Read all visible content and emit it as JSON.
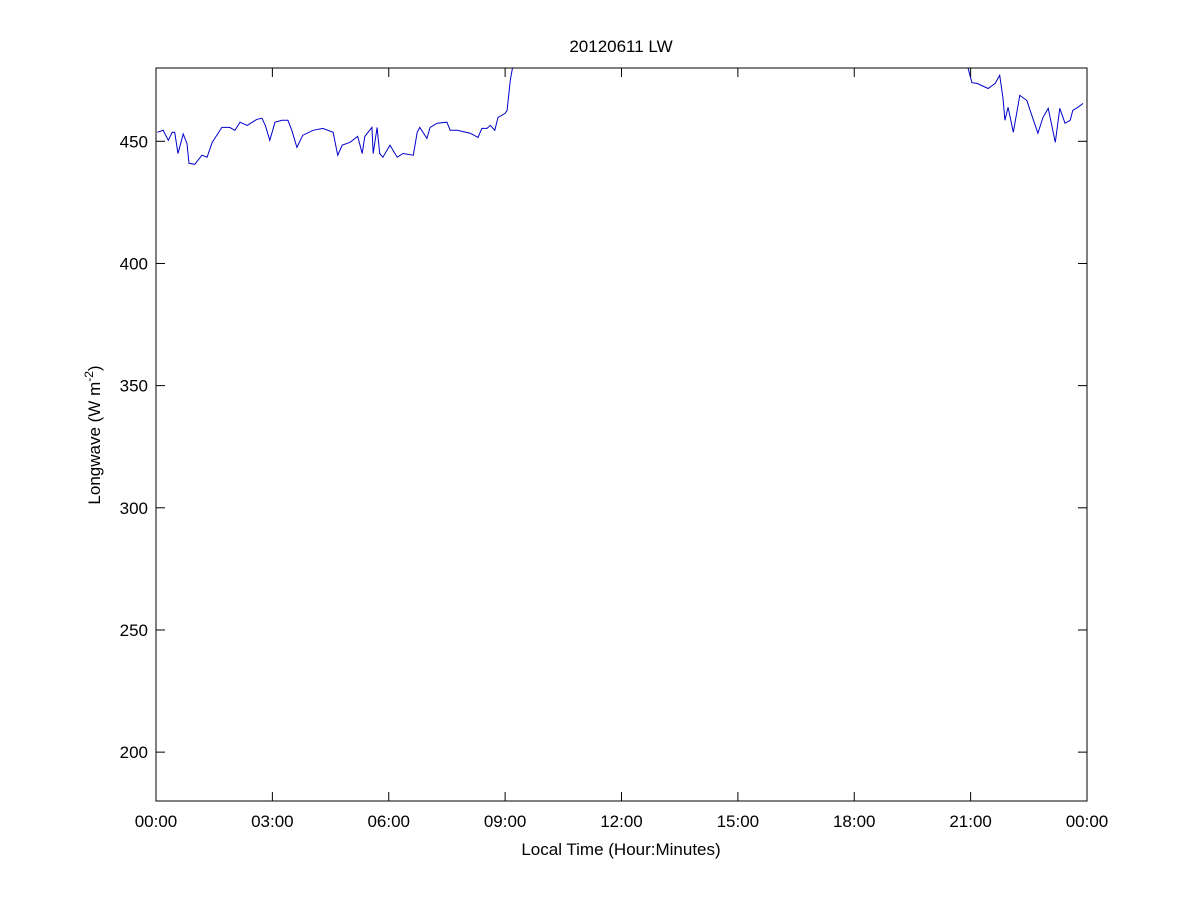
{
  "chart_data": {
    "type": "line",
    "title": "20120611 LW",
    "xlabel": "Local Time (Hour:Minutes)",
    "ylabel": "Longwave (W m",
    "ylabel_superscript": "-2",
    "ylabel_suffix": ")",
    "xlim": [
      "00:00",
      "24:00"
    ],
    "ylim": [
      180,
      480
    ],
    "xticks": [
      "00:00",
      "03:00",
      "06:00",
      "09:00",
      "12:00",
      "15:00",
      "18:00",
      "21:00",
      "00:00"
    ],
    "yticks": [
      200,
      250,
      300,
      350,
      400,
      450
    ],
    "grid": false,
    "line_color": "#0000cc",
    "segments": [
      {
        "x": [
          "00:02",
          "00:11",
          "00:19",
          "00:25",
          "00:29",
          "00:34",
          "00:42",
          "00:48",
          "00:51",
          "01:00",
          "01:11",
          "01:19",
          "01:27",
          "01:42",
          "01:54",
          "02:02",
          "02:10",
          "02:21",
          "02:36",
          "02:44",
          "02:49",
          "02:56",
          "03:04",
          "03:15",
          "03:24",
          "03:30",
          "03:38",
          "03:47",
          "04:03",
          "04:18",
          "04:34",
          "04:41",
          "04:48",
          "05:00",
          "05:12",
          "05:19",
          "05:23",
          "05:34",
          "05:36",
          "05:42",
          "05:46",
          "05:51",
          "06:02",
          "06:13",
          "06:22",
          "06:38",
          "06:44",
          "06:48",
          "06:59",
          "07:04",
          "07:15",
          "07:30",
          "07:35",
          "07:46",
          "08:06",
          "08:18",
          "08:24",
          "08:32",
          "08:37",
          "08:44",
          "08:49",
          "09:00",
          "09:03",
          "09:08",
          "09:12"
        ],
        "y": [
          453.7,
          454.5,
          450.4,
          453.7,
          453.7,
          445,
          453,
          449,
          441,
          440.6,
          444.3,
          443.5,
          449.6,
          455.7,
          455.7,
          454.5,
          457.8,
          456.5,
          459,
          459.4,
          456.5,
          450.4,
          457.8,
          458.6,
          458.6,
          454.5,
          447.5,
          452.5,
          454.5,
          455.3,
          453.7,
          444.3,
          448.4,
          449.6,
          452,
          445,
          452,
          455.7,
          445,
          455.7,
          445,
          443.5,
          448.4,
          443.5,
          445,
          444.3,
          453.7,
          455.7,
          451.2,
          455.7,
          457.4,
          457.8,
          454.5,
          454.5,
          453.3,
          451.6,
          455.3,
          455.3,
          456.5,
          454.5,
          459.8,
          461.4,
          462.7,
          475,
          481
        ]
      },
      {
        "x": [
          "20:55",
          "21:02",
          "21:10",
          "21:27",
          "21:38",
          "21:45",
          "21:50",
          "21:53",
          "21:58",
          "22:06",
          "22:16",
          "22:27",
          "22:32",
          "22:44",
          "22:52",
          "23:00",
          "23:11",
          "23:18",
          "23:26",
          "23:34",
          "23:38",
          "23:46",
          "23:54"
        ],
        "y": [
          481,
          474,
          473.7,
          471.6,
          473.7,
          477,
          467.6,
          458.6,
          463.9,
          453.7,
          468.8,
          466.7,
          462.7,
          453.3,
          459.8,
          463.5,
          449.6,
          463.5,
          457.4,
          458.6,
          462.7,
          463.9,
          465.5
        ]
      }
    ]
  }
}
